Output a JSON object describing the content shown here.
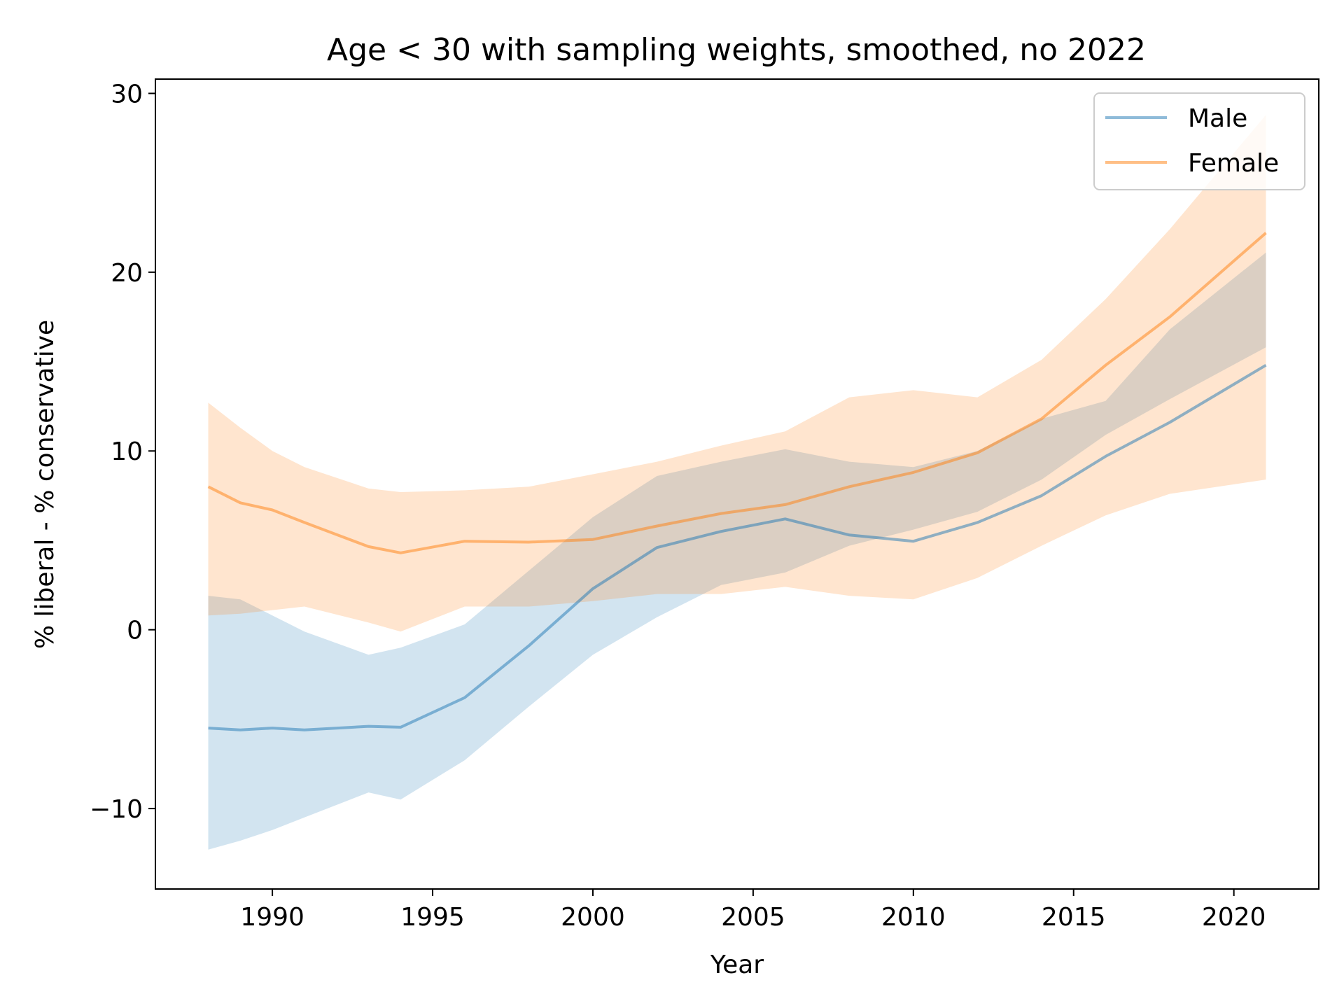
{
  "chart_data": {
    "type": "line",
    "title": "Age < 30 with sampling weights, smoothed, no 2022",
    "xlabel": "Year",
    "ylabel": "% liberal - % conservative",
    "xlim": [
      1986.35,
      1962.65
    ],
    "xlim_note": "",
    "x_range": [
      1986.35,
      2022.65
    ],
    "ylim": [
      -14.5,
      30.8
    ],
    "xticks": [
      1990,
      1995,
      2000,
      2005,
      2010,
      2015,
      2020
    ],
    "yticks": [
      -10,
      0,
      10,
      20,
      30
    ],
    "xtick_labels": [
      "1990",
      "1995",
      "2000",
      "2005",
      "2010",
      "2015",
      "2020"
    ],
    "ytick_labels": [
      "−10",
      "0",
      "10",
      "20",
      "30"
    ],
    "grid": false,
    "legend_position": "top-right",
    "x": [
      1988,
      1989,
      1990,
      1991,
      1993,
      1994,
      1996,
      1998,
      2000,
      2002,
      2004,
      2006,
      2008,
      2010,
      2012,
      2014,
      2016,
      2018,
      2021
    ],
    "series": [
      {
        "name": "Male",
        "color": "#1f77b4",
        "values": [
          -5.5,
          -5.6,
          -5.5,
          -5.6,
          -5.4,
          -5.45,
          -3.8,
          -0.9,
          2.3,
          4.6,
          5.5,
          6.2,
          5.3,
          4.95,
          6.0,
          7.5,
          9.7,
          11.6,
          14.8
        ],
        "ci_lower": [
          -12.3,
          -11.8,
          -11.2,
          -10.5,
          -9.1,
          -9.5,
          -7.3,
          -4.3,
          -1.4,
          0.7,
          2.5,
          3.2,
          4.7,
          5.6,
          6.6,
          8.4,
          10.9,
          12.9,
          15.8
        ],
        "ci_upper": [
          1.9,
          1.7,
          0.8,
          -0.1,
          -1.4,
          -1.0,
          0.3,
          3.3,
          6.3,
          8.6,
          9.4,
          10.1,
          9.4,
          9.1,
          10.0,
          11.8,
          12.8,
          16.8,
          21.1
        ]
      },
      {
        "name": "Female",
        "color": "#ff7f0e",
        "values": [
          8.0,
          7.1,
          6.7,
          6.0,
          4.65,
          4.3,
          4.95,
          4.9,
          5.05,
          5.8,
          6.5,
          7.0,
          8.0,
          8.8,
          9.9,
          11.8,
          14.8,
          17.5,
          22.2
        ],
        "ci_lower": [
          0.8,
          0.9,
          1.1,
          1.3,
          0.4,
          -0.1,
          1.3,
          1.3,
          1.6,
          2.0,
          2.0,
          2.4,
          1.9,
          1.7,
          2.9,
          4.7,
          6.4,
          7.6,
          8.4
        ],
        "ci_upper": [
          12.7,
          11.3,
          10.0,
          9.1,
          7.9,
          7.7,
          7.8,
          8.0,
          8.7,
          9.4,
          10.3,
          11.1,
          13.0,
          13.4,
          13.0,
          15.1,
          18.5,
          22.4,
          28.8
        ]
      }
    ]
  }
}
